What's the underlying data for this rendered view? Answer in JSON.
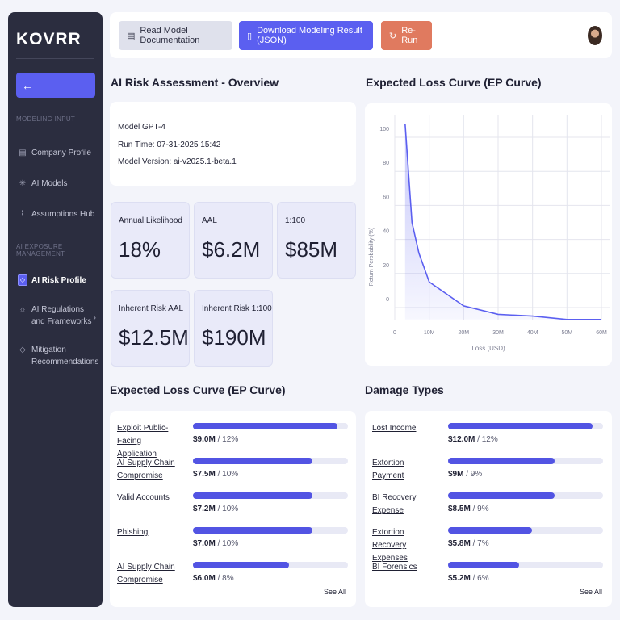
{
  "sidebar": {
    "logo": "KOVRR",
    "back_icon": "arrow-left-icon",
    "section_modeling": "MODELING INPUT",
    "section_exposure": "AI EXPOSURE MANAGEMENT",
    "items": [
      {
        "label": "Company Profile",
        "icon": "building-icon"
      },
      {
        "label": "AI Models",
        "icon": "sparkle-icon"
      },
      {
        "label": "Assumptions Hub",
        "icon": "pulse-icon"
      },
      {
        "label": "AI Risk Profile",
        "icon": "diamond-icon",
        "active": true
      },
      {
        "label": "AI Regulations and Frameworks",
        "icon": "sun-icon"
      },
      {
        "label": "Mitigation Recommendations",
        "icon": "diamond-outline-icon"
      }
    ]
  },
  "toolbar": {
    "doc_label": "Read Model Documentation",
    "download_label": "Download Modeling Result (JSON)",
    "rerun_label": "Re-Run"
  },
  "overview": {
    "title": "AI Risk Assessment - Overview",
    "model": "Model GPT-4",
    "run_time": "Run Time: 07-31-2025 15:42",
    "model_version": "Model Version: ai-v2025.1-beta.1",
    "metrics": [
      {
        "label": "Annual Likelihood",
        "value": "18%"
      },
      {
        "label": "AAL",
        "value": "$6.2M"
      },
      {
        "label": "1:100",
        "value": "$85M"
      },
      {
        "label": "Inherent Risk AAL",
        "value": "$12.5M"
      },
      {
        "label": "Inherent Risk 1:100",
        "value": "$190M"
      }
    ]
  },
  "chart_data": {
    "type": "area",
    "title": "Expected Loss Curve (EP Curve)",
    "xlabel": "Loss (USD)",
    "ylabel": "Return Perobability (%)",
    "x_ticks": [
      "0",
      "10M",
      "20M",
      "30M",
      "40M",
      "50M",
      "60M"
    ],
    "y_ticks": [
      "0",
      "20",
      "40",
      "60",
      "80",
      "100"
    ],
    "xlim": [
      0,
      60
    ],
    "ylim": [
      0,
      100
    ],
    "grid": true,
    "x": [
      3,
      5,
      7,
      10,
      20,
      30,
      40,
      50,
      60
    ],
    "y": [
      108,
      50,
      32,
      15,
      1,
      -4,
      -5,
      -7,
      -7
    ],
    "line_color": "#5b5ff0"
  },
  "attack_vectors": {
    "title": "Expected Loss Curve (EP Curve)",
    "see_all": "See All",
    "items": [
      {
        "name": "Exploit Public-Facing Application",
        "amount": "$9.0M",
        "pct": "12%",
        "fill": 0.93
      },
      {
        "name": "AI Supply Chain Compromise",
        "amount": "$7.5M",
        "pct": "10%",
        "fill": 0.77
      },
      {
        "name": "Valid Accounts",
        "amount": "$7.2M",
        "pct": "10%",
        "fill": 0.77
      },
      {
        "name": "Phishing",
        "amount": "$7.0M",
        "pct": "10%",
        "fill": 0.77
      },
      {
        "name": "AI Supply Chain Compromise",
        "amount": "$6.0M",
        "pct": "8%",
        "fill": 0.62
      }
    ]
  },
  "damage_types": {
    "title": "Damage Types",
    "see_all": "See All",
    "items": [
      {
        "name": "Lost Income",
        "amount": "$12.0M",
        "pct": "12%",
        "fill": 0.93
      },
      {
        "name": "Extortion Payment",
        "amount": "$9M",
        "pct": "9%",
        "fill": 0.69
      },
      {
        "name": "BI Recovery Expense",
        "amount": "$8.5M",
        "pct": "9%",
        "fill": 0.69
      },
      {
        "name": "Extortion Recovery Expenses",
        "amount": "$5.8M",
        "pct": "7%",
        "fill": 0.54
      },
      {
        "name": "BI Forensics",
        "amount": "$5.2M",
        "pct": "6%",
        "fill": 0.46
      }
    ]
  }
}
